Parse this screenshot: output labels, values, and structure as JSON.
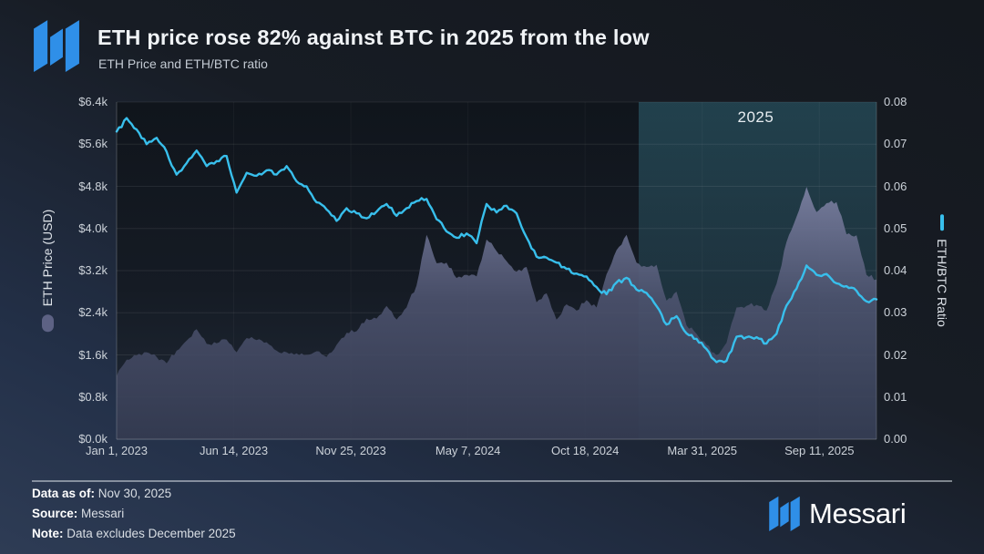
{
  "header": {
    "title": "ETH price rose 82% against BTC in 2025 from the low",
    "subtitle": "ETH Price and ETH/BTC ratio"
  },
  "footer": {
    "data_as_of_label": "Data as of:",
    "data_as_of_value": "Nov 30, 2025",
    "source_label": "Source:",
    "source_value": "Messari",
    "note_label": "Note:",
    "note_value": "Data excludes December 2025",
    "brand": "Messari"
  },
  "colors": {
    "brand_blue": "#2f8fe8",
    "ratio_line": "#38bfec",
    "price_area": "#5d6284",
    "highlight_band": "rgba(74,166,190,0.26)",
    "background_top": "#14181e",
    "background_bottom": "#2e3c55"
  },
  "chart_data": {
    "type": "line",
    "title": "ETH price rose 82% against BTC in 2025 from the low",
    "subtitle": "ETH Price and ETH/BTC ratio",
    "x_unit": "days since Jan 1, 2023",
    "x_range": [
      0,
      1064
    ],
    "x_ticks": [
      {
        "day": 0,
        "label": "Jan 1, 2023"
      },
      {
        "day": 164,
        "label": "Jun 14, 2023"
      },
      {
        "day": 328,
        "label": "Nov 25, 2023"
      },
      {
        "day": 492,
        "label": "May 7, 2024"
      },
      {
        "day": 656,
        "label": "Oct 18, 2024"
      },
      {
        "day": 820,
        "label": "Mar 31, 2025"
      },
      {
        "day": 984,
        "label": "Sep 11, 2025"
      }
    ],
    "y_left": {
      "label": "ETH Price (USD)",
      "min": 0,
      "max": 6400,
      "ticks": [
        {
          "v": 6400,
          "label": "$6.4k"
        },
        {
          "v": 5600,
          "label": "$5.6k"
        },
        {
          "v": 4800,
          "label": "$4.8k"
        },
        {
          "v": 4000,
          "label": "$4.0k"
        },
        {
          "v": 3200,
          "label": "$3.2k"
        },
        {
          "v": 2400,
          "label": "$2.4k"
        },
        {
          "v": 1600,
          "label": "$1.6k"
        },
        {
          "v": 800,
          "label": "$0.8k"
        },
        {
          "v": 0,
          "label": "$0.0k"
        }
      ]
    },
    "y_right": {
      "label": "ETH/BTC Ratio",
      "min": 0,
      "max": 0.08,
      "ticks": [
        {
          "v": 0.08,
          "label": "0.08"
        },
        {
          "v": 0.07,
          "label": "0.07"
        },
        {
          "v": 0.06,
          "label": "0.06"
        },
        {
          "v": 0.05,
          "label": "0.05"
        },
        {
          "v": 0.04,
          "label": "0.04"
        },
        {
          "v": 0.03,
          "label": "0.03"
        },
        {
          "v": 0.02,
          "label": "0.02"
        },
        {
          "v": 0.01,
          "label": "0.01"
        },
        {
          "v": 0.0,
          "label": "0.00"
        }
      ]
    },
    "highlight": {
      "label": "2025",
      "start_day": 731,
      "end_day": 1064
    },
    "grid": true,
    "x_days": [
      0,
      14,
      28,
      42,
      56,
      70,
      84,
      98,
      112,
      126,
      140,
      154,
      168,
      182,
      196,
      210,
      224,
      238,
      252,
      266,
      280,
      294,
      308,
      322,
      336,
      350,
      364,
      378,
      392,
      406,
      420,
      434,
      448,
      462,
      476,
      490,
      504,
      518,
      532,
      546,
      560,
      574,
      588,
      602,
      616,
      630,
      644,
      658,
      672,
      686,
      700,
      714,
      728,
      742,
      756,
      770,
      784,
      798,
      812,
      826,
      840,
      854,
      868,
      882,
      896,
      910,
      924,
      938,
      952,
      966,
      980,
      994,
      1008,
      1022,
      1036,
      1050,
      1064
    ],
    "series": [
      {
        "name": "ETH Price (USD)",
        "type": "area",
        "axis": "left",
        "color": "#5d6284",
        "values": [
          1200,
          1510,
          1590,
          1650,
          1560,
          1440,
          1680,
          1870,
          2090,
          1810,
          1820,
          1890,
          1650,
          1920,
          1880,
          1840,
          1680,
          1650,
          1630,
          1600,
          1670,
          1560,
          1790,
          2020,
          2050,
          2290,
          2290,
          2530,
          2270,
          2500,
          2920,
          3880,
          3340,
          3350,
          3060,
          3120,
          3090,
          3790,
          3570,
          3380,
          3180,
          3270,
          2600,
          2770,
          2270,
          2560,
          2440,
          2640,
          2500,
          3130,
          3590,
          3880,
          3350,
          3270,
          3310,
          2630,
          2800,
          2160,
          2000,
          1790,
          1590,
          1830,
          2500,
          2530,
          2550,
          2440,
          2950,
          3740,
          4220,
          4790,
          4310,
          4480,
          4500,
          3890,
          3870,
          3120,
          3030
        ]
      },
      {
        "name": "ETH/BTC Ratio",
        "type": "line",
        "axis": "right",
        "color": "#38bfec",
        "values": [
          0.073,
          0.0762,
          0.0735,
          0.07,
          0.0715,
          0.0682,
          0.0628,
          0.0655,
          0.0685,
          0.0648,
          0.066,
          0.0672,
          0.0585,
          0.0632,
          0.0625,
          0.0638,
          0.0628,
          0.0648,
          0.0612,
          0.06,
          0.0562,
          0.0545,
          0.0518,
          0.0548,
          0.0536,
          0.0524,
          0.054,
          0.0558,
          0.053,
          0.0548,
          0.0565,
          0.057,
          0.0522,
          0.0493,
          0.0478,
          0.0488,
          0.0465,
          0.0558,
          0.0538,
          0.0554,
          0.0536,
          0.0479,
          0.0433,
          0.0431,
          0.0419,
          0.0404,
          0.0393,
          0.0386,
          0.0361,
          0.0344,
          0.0372,
          0.0383,
          0.0355,
          0.0347,
          0.0316,
          0.0272,
          0.0292,
          0.0251,
          0.0238,
          0.0214,
          0.0183,
          0.0186,
          0.0243,
          0.0242,
          0.0242,
          0.0227,
          0.025,
          0.0317,
          0.0357,
          0.0412,
          0.039,
          0.0392,
          0.037,
          0.0363,
          0.0352,
          0.0327,
          0.0332
        ]
      }
    ]
  }
}
